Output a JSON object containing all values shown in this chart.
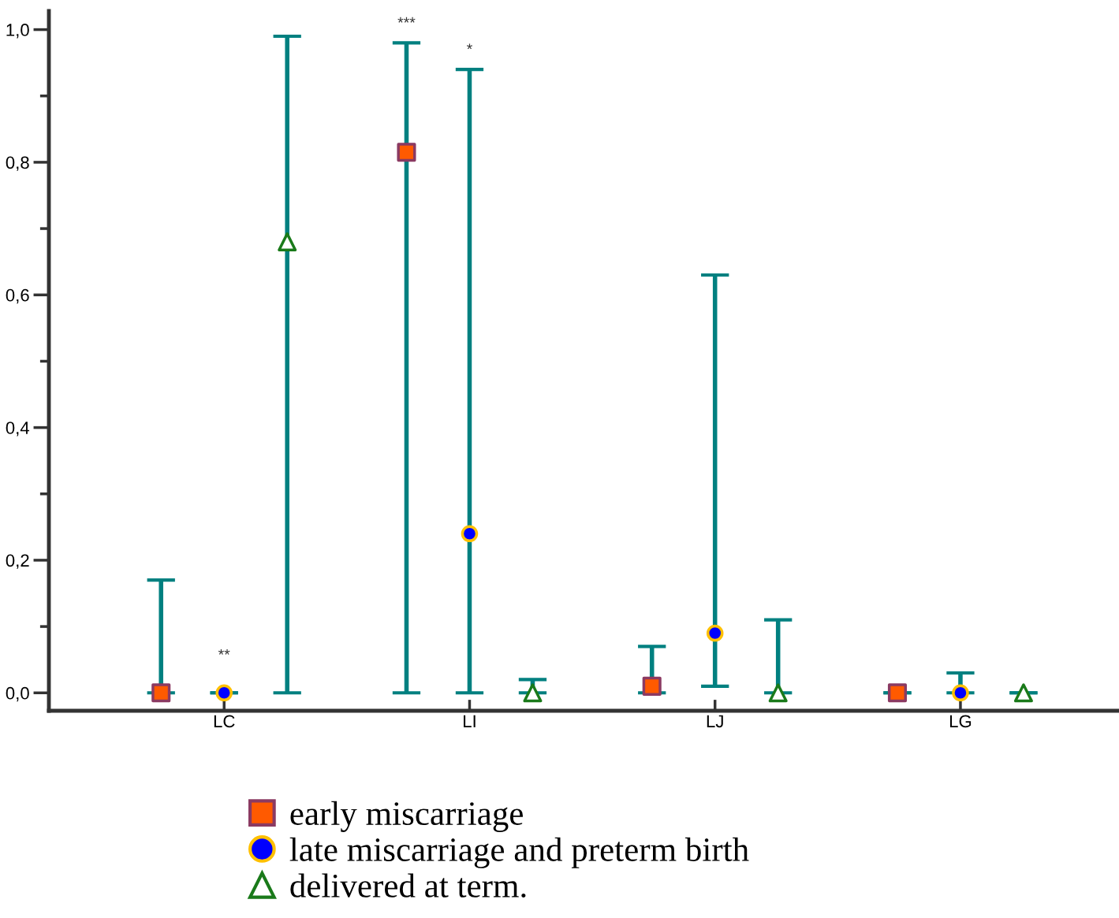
{
  "chart_data": {
    "type": "scatter",
    "categories": [
      "LC",
      "LI",
      "LJ",
      "LG"
    ],
    "series": [
      {
        "name": "early miscarriage",
        "color": "#ff5a00",
        "marker": "square",
        "values": [
          0.0,
          0.815,
          0.01,
          0.0
        ],
        "errors": [
          [
            0.0,
            0.17
          ],
          [
            0.0,
            0.98
          ],
          [
            0.0,
            0.07
          ],
          [
            0.0,
            0.0
          ]
        ]
      },
      {
        "name": "late miscarriage and preterm birth",
        "color": "#0000ff",
        "marker": "circle",
        "values": [
          0.0,
          0.24,
          0.09,
          0.0
        ],
        "errors": [
          [
            0.0,
            0.0
          ],
          [
            0.0,
            0.94
          ],
          [
            0.01,
            0.63
          ],
          [
            0.0,
            0.03
          ]
        ]
      },
      {
        "name": "delivered at term.",
        "color": "#ffffff",
        "marker": "triangle",
        "values": [
          0.68,
          0.0,
          0.0,
          0.0
        ],
        "errors": [
          [
            0.0,
            0.99
          ],
          [
            0.0,
            0.02
          ],
          [
            0.0,
            0.11
          ],
          [
            0.0,
            0.0
          ]
        ]
      }
    ],
    "ylim": [
      -0.027,
      1.028
    ],
    "yticks": [
      {
        "value": 0.0,
        "label": "0,0"
      },
      {
        "value": 0.1,
        "label": null
      },
      {
        "value": 0.2,
        "label": "0,2"
      },
      {
        "value": 0.3,
        "label": null
      },
      {
        "value": 0.4,
        "label": "0,4"
      },
      {
        "value": 0.5,
        "label": null
      },
      {
        "value": 0.6,
        "label": "0,6"
      },
      {
        "value": 0.7,
        "label": null
      },
      {
        "value": 0.8,
        "label": "0,8"
      },
      {
        "value": 0.9,
        "label": null
      },
      {
        "value": 1.0,
        "label": "1,0"
      }
    ],
    "annotations": [
      "**",
      "***",
      "*"
    ],
    "grid": false,
    "legend": "bottom"
  }
}
